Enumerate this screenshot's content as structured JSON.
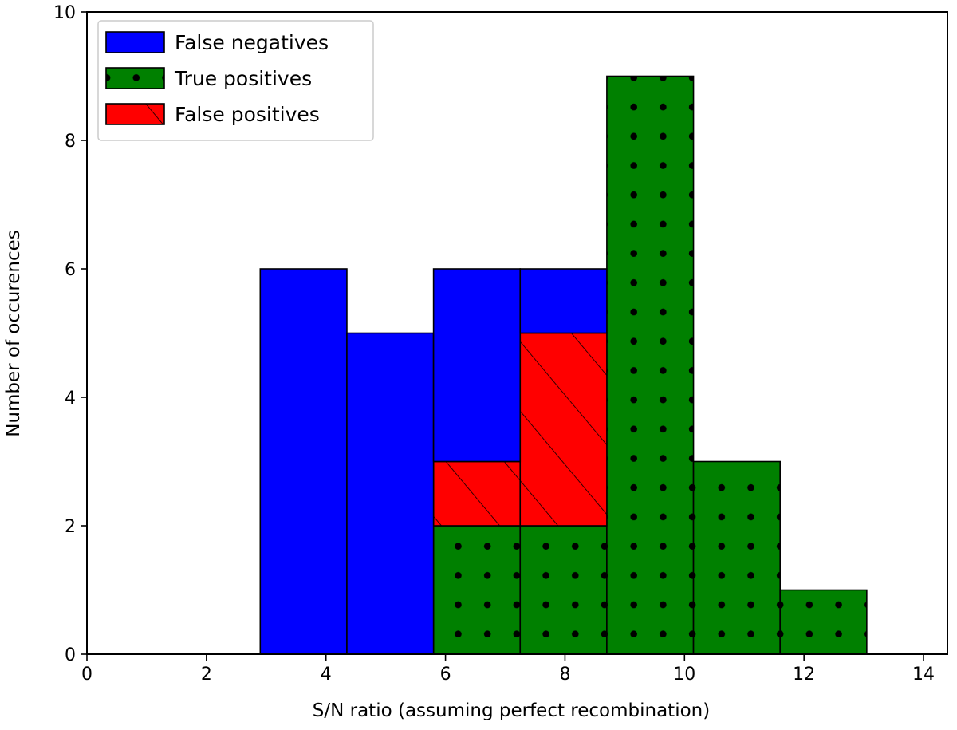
{
  "chart_data": {
    "type": "bar",
    "subtype": "stacked-histogram",
    "title": "",
    "xlabel": "S/N ratio (assuming perfect recombination)",
    "ylabel": "Number of occurences",
    "xlim": [
      0,
      14.4
    ],
    "ylim": [
      0,
      10
    ],
    "xticks": [
      0,
      2,
      4,
      6,
      8,
      10,
      12,
      14
    ],
    "yticks": [
      0,
      2,
      4,
      6,
      8,
      10
    ],
    "legend_position": "top-left",
    "bins": [
      [
        0.0,
        1.45
      ],
      [
        1.45,
        2.9
      ],
      [
        2.9,
        4.35
      ],
      [
        4.35,
        5.8
      ],
      [
        5.8,
        7.25
      ],
      [
        7.25,
        8.7
      ],
      [
        8.7,
        10.15
      ],
      [
        10.15,
        11.6
      ],
      [
        11.6,
        13.05
      ],
      [
        13.05,
        14.5
      ]
    ],
    "series": [
      {
        "name": "True positives",
        "color": "#008000",
        "pattern": "dots",
        "values": [
          0,
          0,
          0,
          0,
          2,
          2,
          9,
          3,
          1,
          0
        ]
      },
      {
        "name": "False positives",
        "color": "#ff0000",
        "pattern": "hatch",
        "values": [
          0,
          0,
          0,
          0,
          1,
          3,
          0,
          0,
          0,
          0
        ]
      },
      {
        "name": "False negatives",
        "color": "#0000ff",
        "pattern": "none",
        "values": [
          0,
          0,
          6,
          5,
          3,
          1,
          0,
          0,
          0,
          0
        ]
      }
    ],
    "legend_order": [
      "False negatives",
      "True positives",
      "False positives"
    ]
  }
}
